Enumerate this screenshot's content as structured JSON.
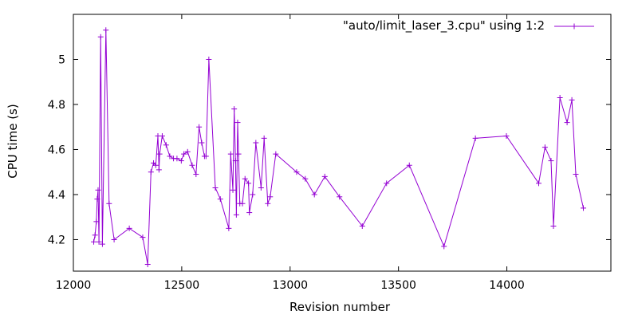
{
  "chart_data": {
    "type": "line",
    "xlabel": "Revision number",
    "ylabel": "CPU time (s)",
    "xlim": [
      12000,
      14480
    ],
    "ylim": [
      4.06,
      5.2
    ],
    "x_ticks": [
      12000,
      12500,
      13000,
      13500,
      14000
    ],
    "y_ticks": [
      4.2,
      4.4,
      4.6,
      4.8,
      5
    ],
    "legend_position": "top-right",
    "line_color": "#9400d3",
    "grid": false,
    "series": [
      {
        "name": "\"auto/limit_laser_3.cpu\" using 1:2",
        "points": [
          [
            12094,
            4.19
          ],
          [
            12100,
            4.22
          ],
          [
            12106,
            4.28
          ],
          [
            12110,
            4.38
          ],
          [
            12114,
            4.42
          ],
          [
            12118,
            4.19
          ],
          [
            12126,
            5.1
          ],
          [
            12134,
            4.18
          ],
          [
            12150,
            5.13
          ],
          [
            12165,
            4.36
          ],
          [
            12188,
            4.2
          ],
          [
            12258,
            4.25
          ],
          [
            12320,
            4.21
          ],
          [
            12343,
            4.09
          ],
          [
            12358,
            4.5
          ],
          [
            12370,
            4.54
          ],
          [
            12380,
            4.53
          ],
          [
            12390,
            4.66
          ],
          [
            12395,
            4.51
          ],
          [
            12398,
            4.58
          ],
          [
            12410,
            4.66
          ],
          [
            12428,
            4.62
          ],
          [
            12445,
            4.57
          ],
          [
            12462,
            4.56
          ],
          [
            12478,
            4.56
          ],
          [
            12498,
            4.55
          ],
          [
            12510,
            4.58
          ],
          [
            12527,
            4.59
          ],
          [
            12548,
            4.53
          ],
          [
            12566,
            4.49
          ],
          [
            12580,
            4.7
          ],
          [
            12592,
            4.63
          ],
          [
            12605,
            4.57
          ],
          [
            12612,
            4.57
          ],
          [
            12625,
            5.0
          ],
          [
            12655,
            4.43
          ],
          [
            12678,
            4.38
          ],
          [
            12717,
            4.25
          ],
          [
            12726,
            4.58
          ],
          [
            12736,
            4.42
          ],
          [
            12742,
            4.78
          ],
          [
            12748,
            4.55
          ],
          [
            12752,
            4.31
          ],
          [
            12758,
            4.72
          ],
          [
            12762,
            4.58
          ],
          [
            12768,
            4.36
          ],
          [
            12780,
            4.36
          ],
          [
            12792,
            4.47
          ],
          [
            12808,
            4.45
          ],
          [
            12812,
            4.32
          ],
          [
            12827,
            4.4
          ],
          [
            12842,
            4.63
          ],
          [
            12866,
            4.43
          ],
          [
            12880,
            4.65
          ],
          [
            12897,
            4.36
          ],
          [
            12908,
            4.39
          ],
          [
            12934,
            4.58
          ],
          [
            13030,
            4.5
          ],
          [
            13070,
            4.47
          ],
          [
            13112,
            4.4
          ],
          [
            13160,
            4.48
          ],
          [
            13228,
            4.39
          ],
          [
            13333,
            4.26
          ],
          [
            13445,
            4.45
          ],
          [
            13550,
            4.53
          ],
          [
            13710,
            4.17
          ],
          [
            13855,
            4.65
          ],
          [
            13998,
            4.66
          ],
          [
            14147,
            4.45
          ],
          [
            14176,
            4.61
          ],
          [
            14204,
            4.55
          ],
          [
            14215,
            4.26
          ],
          [
            14245,
            4.83
          ],
          [
            14278,
            4.72
          ],
          [
            14300,
            4.82
          ],
          [
            14318,
            4.49
          ],
          [
            14353,
            4.34
          ]
        ]
      }
    ]
  }
}
